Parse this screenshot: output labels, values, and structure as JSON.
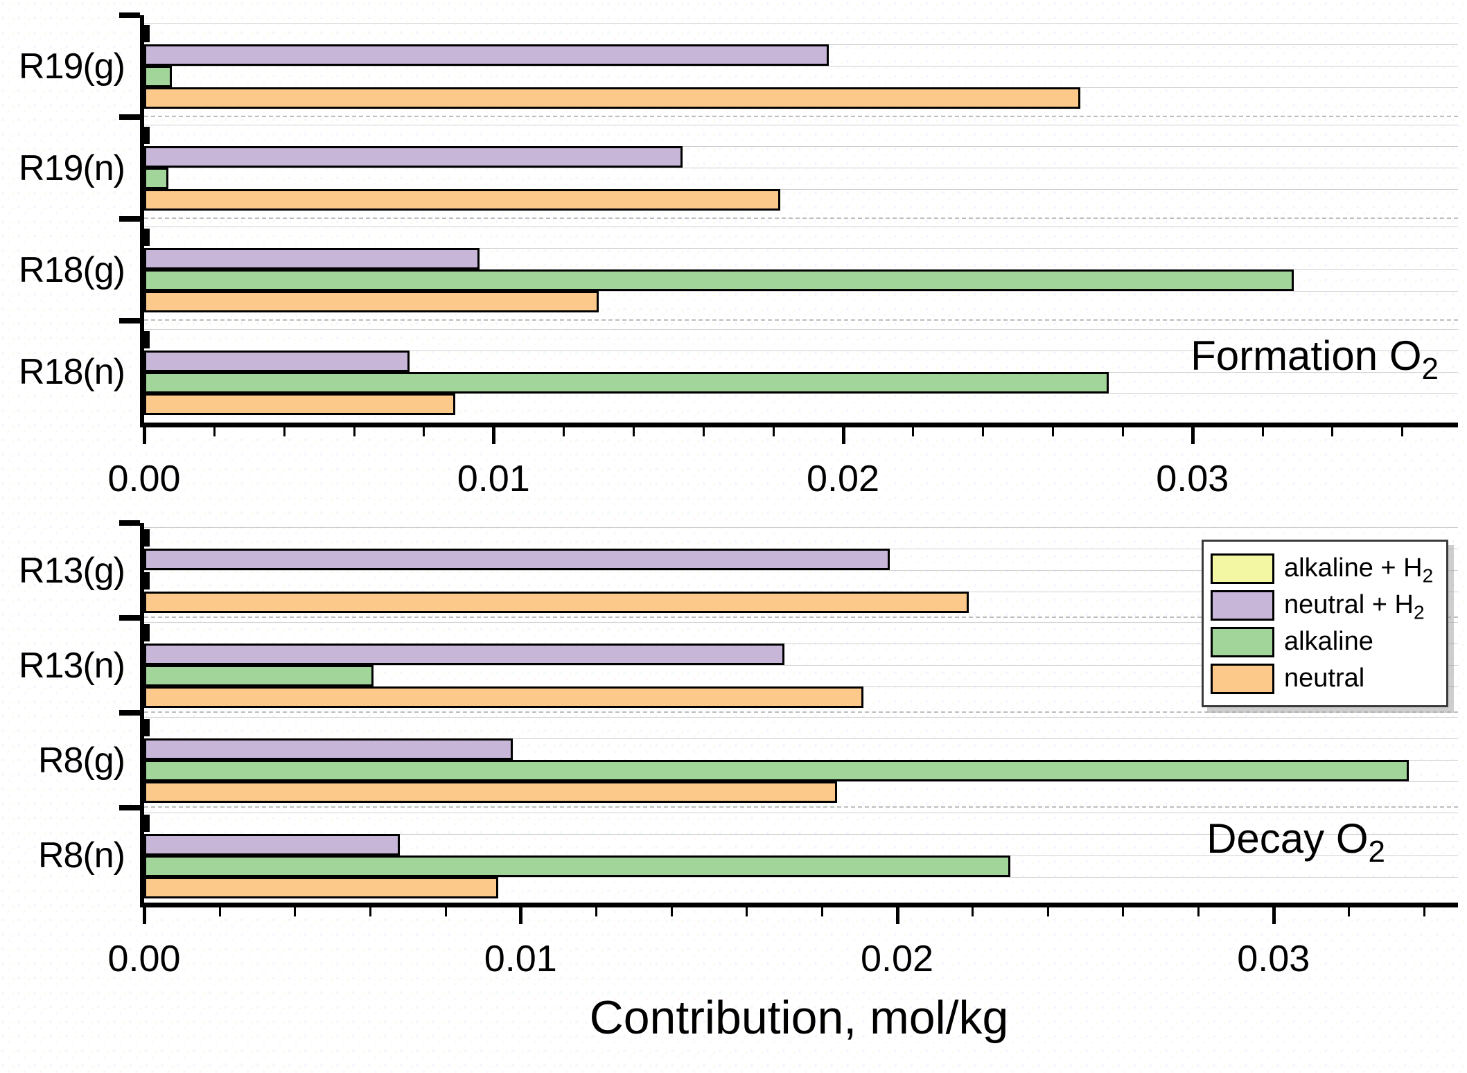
{
  "figure": {
    "xlabel": "Contribution, mol/kg",
    "background_color": "#ffffff",
    "axis_color": "#000000",
    "gridline_color": "#bdbdbd"
  },
  "legend": {
    "position": "top-right-of-bottom-panel",
    "items": [
      {
        "key": "alkaline_h2",
        "label": [
          {
            "t": "alkaline + H"
          },
          {
            "t": "2",
            "sub": true
          }
        ],
        "color": "#f3f6a2"
      },
      {
        "key": "neutral_h2",
        "label": [
          {
            "t": "neutral + H"
          },
          {
            "t": "2",
            "sub": true
          }
        ],
        "color": "#c7b6d8"
      },
      {
        "key": "alkaline",
        "label": [
          {
            "t": "alkaline"
          }
        ],
        "color": "#a2d59a"
      },
      {
        "key": "neutral",
        "label": [
          {
            "t": "neutral"
          }
        ],
        "color": "#fcc98b"
      }
    ]
  },
  "chart_data": [
    {
      "type": "bar",
      "orientation": "horizontal",
      "title": [
        {
          "t": "Formation O"
        },
        {
          "t": "2",
          "sub": true
        }
      ],
      "categories": [
        "R19(g)",
        "R19(n)",
        "R18(g)",
        "R18(n)"
      ],
      "series": [
        {
          "key": "alkaline_h2",
          "name": "alkaline + H2",
          "color": "#f3f6a2",
          "values": [
            0,
            0,
            0,
            0
          ]
        },
        {
          "key": "neutral_h2",
          "name": "neutral + H2",
          "color": "#c7b6d8",
          "values": [
            0.0196,
            0.0154,
            0.0096,
            0.0076
          ]
        },
        {
          "key": "alkaline",
          "name": "alkaline",
          "color": "#a2d59a",
          "values": [
            0.0008,
            0.0007,
            0.0329,
            0.0276
          ]
        },
        {
          "key": "neutral",
          "name": "neutral",
          "color": "#fcc98b",
          "values": [
            0.0268,
            0.0182,
            0.013,
            0.0089
          ]
        }
      ],
      "xlim": [
        0,
        0.0376
      ],
      "xticks": [
        0,
        0.01,
        0.02,
        0.03
      ],
      "xtick_labels": [
        "0.00",
        "0.01",
        "0.02",
        "0.03"
      ],
      "minor_step": 0.002,
      "grid": "dashed-between-categories",
      "xlabel": "Contribution, mol/kg"
    },
    {
      "type": "bar",
      "orientation": "horizontal",
      "title": [
        {
          "t": "Decay O"
        },
        {
          "t": "2",
          "sub": true
        }
      ],
      "categories": [
        "R13(g)",
        "R13(n)",
        "R8(g)",
        "R8(n)"
      ],
      "series": [
        {
          "key": "alkaline_h2",
          "name": "alkaline + H2",
          "color": "#f3f6a2",
          "values": [
            0,
            0,
            0,
            0
          ]
        },
        {
          "key": "neutral_h2",
          "name": "neutral + H2",
          "color": "#c7b6d8",
          "values": [
            0.0198,
            0.017,
            0.0098,
            0.0068
          ]
        },
        {
          "key": "alkaline",
          "name": "alkaline",
          "color": "#a2d59a",
          "values": [
            0,
            0.0061,
            0.0336,
            0.023
          ]
        },
        {
          "key": "neutral",
          "name": "neutral",
          "color": "#fcc98b",
          "values": [
            0.0219,
            0.0191,
            0.0184,
            0.0094
          ]
        }
      ],
      "xlim": [
        0,
        0.0349
      ],
      "xticks": [
        0,
        0.01,
        0.02,
        0.03
      ],
      "xtick_labels": [
        "0.00",
        "0.01",
        "0.02",
        "0.03"
      ],
      "minor_step": 0.002,
      "grid": "dashed-between-categories",
      "xlabel": "Contribution, mol/kg"
    }
  ]
}
